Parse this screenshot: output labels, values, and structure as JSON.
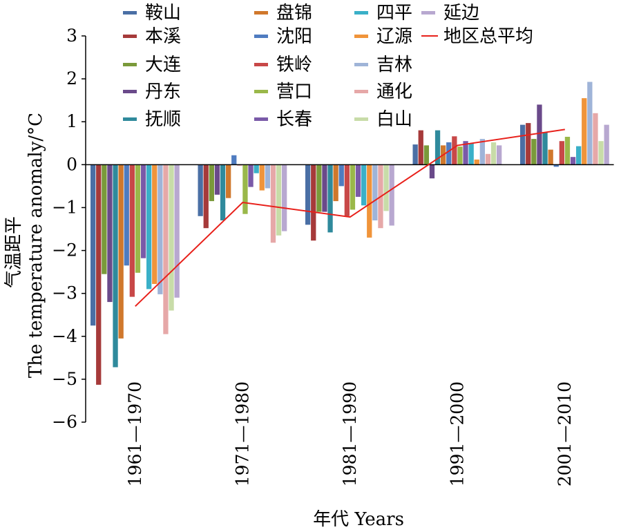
{
  "chart_data": {
    "type": "bar",
    "categories": [
      "1961—1970",
      "1971—1980",
      "1981—1990",
      "1991—2000",
      "2001—2010"
    ],
    "xlabel": "年代 Years",
    "ylabel_cn": "气温距平",
    "ylabel_en": "The temperature anomaly/°C",
    "ylim": [
      -6,
      3
    ],
    "yticks": [
      3,
      2,
      1,
      0,
      -1,
      -2,
      -3,
      -4,
      -5,
      -6
    ],
    "grid": false,
    "legend_position": "top",
    "series": [
      {
        "name": "鞍山",
        "color": "#4a6fa5",
        "values": [
          -3.75,
          -1.2,
          -1.4,
          0.47,
          0.93
        ]
      },
      {
        "name": "本溪",
        "color": "#a63a3a",
        "values": [
          -5.13,
          -1.48,
          -1.77,
          0.8,
          0.97
        ]
      },
      {
        "name": "大连",
        "color": "#7a9a3a",
        "values": [
          -2.55,
          -0.85,
          -1.1,
          0.45,
          0.6
        ]
      },
      {
        "name": "丹东",
        "color": "#6a4a8a",
        "values": [
          -3.2,
          -0.7,
          -1.1,
          -0.32,
          1.4
        ]
      },
      {
        "name": "抚顺",
        "color": "#2f8a9c",
        "values": [
          -4.72,
          -1.3,
          -1.58,
          0.8,
          0.75
        ]
      },
      {
        "name": "盘锦",
        "color": "#d0782c",
        "values": [
          -4.05,
          -0.78,
          -0.85,
          0.45,
          0.35
        ]
      },
      {
        "name": "沈阳",
        "color": "#4f7cc0",
        "values": [
          -2.35,
          0.22,
          -0.5,
          0.52,
          -0.05
        ]
      },
      {
        "name": "铁岭",
        "color": "#c84848",
        "values": [
          -3.08,
          -0.02,
          -1.2,
          0.66,
          0.55
        ]
      },
      {
        "name": "营口",
        "color": "#9ab84a",
        "values": [
          -2.52,
          -1.15,
          -1.05,
          0.42,
          0.65
        ]
      },
      {
        "name": "长春",
        "color": "#7a5aa8",
        "values": [
          -2.18,
          -0.52,
          -0.75,
          0.55,
          0.18
        ]
      },
      {
        "name": "四平",
        "color": "#3ab0c8",
        "values": [
          -2.9,
          -0.2,
          -0.95,
          0.5,
          0.43
        ]
      },
      {
        "name": "辽源",
        "color": "#f0943a",
        "values": [
          -2.78,
          -0.6,
          -1.7,
          0.12,
          1.55
        ]
      },
      {
        "name": "吉林",
        "color": "#9fb4d8",
        "values": [
          -3.02,
          -0.55,
          -1.3,
          0.6,
          1.93
        ]
      },
      {
        "name": "通化",
        "color": "#e6a8a8",
        "values": [
          -3.95,
          -1.82,
          -1.48,
          0.25,
          1.2
        ]
      },
      {
        "name": "白山",
        "color": "#c8dca8",
        "values": [
          -3.4,
          -1.65,
          -1.08,
          0.52,
          0.55
        ]
      },
      {
        "name": "延边",
        "color": "#b8a8d0",
        "values": [
          -3.1,
          -1.55,
          -1.42,
          0.45,
          0.93
        ]
      }
    ],
    "average_line": {
      "name": "地区总平均",
      "color": "#e8201a",
      "values": [
        -3.3,
        -0.88,
        -1.22,
        0.45,
        0.82
      ]
    }
  }
}
